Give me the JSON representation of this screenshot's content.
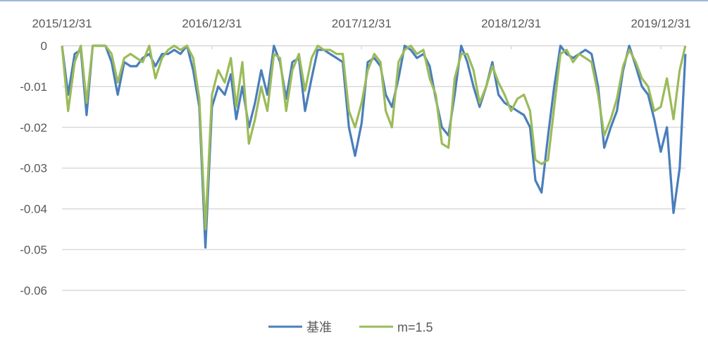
{
  "chart_data": {
    "type": "line",
    "title": "",
    "xlabel": "",
    "ylabel": "",
    "x_tick_labels": [
      "2015/12/31",
      "2016/12/31",
      "2017/12/31",
      "2018/12/31",
      "2019/12/31"
    ],
    "y_tick_labels": [
      "0",
      "-0.01",
      "-0.02",
      "-0.03",
      "-0.04",
      "-0.05",
      "-0.06"
    ],
    "ylim": [
      -0.06,
      0
    ],
    "x_axis_position": "top",
    "grid": true,
    "legend_position": "bottom",
    "x": [
      "2015-12-31",
      "2016-01-15",
      "2016-01-31",
      "2016-02-15",
      "2016-02-29",
      "2016-03-15",
      "2016-03-31",
      "2016-04-15",
      "2016-04-30",
      "2016-05-15",
      "2016-05-31",
      "2016-06-15",
      "2016-06-30",
      "2016-07-15",
      "2016-07-31",
      "2016-08-15",
      "2016-08-31",
      "2016-09-15",
      "2016-09-30",
      "2016-10-15",
      "2016-10-31",
      "2016-11-15",
      "2016-11-30",
      "2016-12-15",
      "2016-12-31",
      "2017-01-15",
      "2017-01-31",
      "2017-02-15",
      "2017-02-28",
      "2017-03-15",
      "2017-03-31",
      "2017-04-15",
      "2017-04-30",
      "2017-05-15",
      "2017-05-31",
      "2017-06-15",
      "2017-06-30",
      "2017-07-15",
      "2017-07-31",
      "2017-08-15",
      "2017-08-31",
      "2017-09-15",
      "2017-09-30",
      "2017-10-15",
      "2017-10-31",
      "2017-11-15",
      "2017-11-30",
      "2017-12-15",
      "2017-12-31",
      "2018-01-15",
      "2018-01-31",
      "2018-02-15",
      "2018-02-28",
      "2018-03-15",
      "2018-03-31",
      "2018-04-15",
      "2018-04-30",
      "2018-05-15",
      "2018-05-31",
      "2018-06-15",
      "2018-06-30",
      "2018-07-15",
      "2018-07-31",
      "2018-08-15",
      "2018-08-31",
      "2018-09-15",
      "2018-09-30",
      "2018-10-15",
      "2018-10-31",
      "2018-11-15",
      "2018-11-30",
      "2018-12-15",
      "2018-12-31",
      "2019-01-15",
      "2019-01-31",
      "2019-02-15",
      "2019-02-28",
      "2019-03-15",
      "2019-03-31",
      "2019-04-15",
      "2019-04-30",
      "2019-05-15",
      "2019-05-31",
      "2019-06-15",
      "2019-06-30",
      "2019-07-15",
      "2019-07-31",
      "2019-08-15",
      "2019-08-31",
      "2019-09-15",
      "2019-09-30",
      "2019-10-15",
      "2019-10-31",
      "2019-11-15",
      "2019-11-30",
      "2019-12-15",
      "2019-12-31",
      "2020-01-15",
      "2020-01-31",
      "2020-02-15",
      "2020-02-29"
    ],
    "series": [
      {
        "name": "基准",
        "color": "#4a7ebb",
        "values": [
          0,
          -0.012,
          -0.002,
          -0.001,
          -0.017,
          0,
          0,
          0,
          -0.004,
          -0.012,
          -0.004,
          -0.005,
          -0.005,
          -0.003,
          -0.002,
          -0.005,
          -0.002,
          -0.002,
          -0.001,
          -0.002,
          0,
          -0.006,
          -0.015,
          -0.0495,
          -0.015,
          -0.01,
          -0.012,
          -0.007,
          -0.018,
          -0.01,
          -0.02,
          -0.014,
          -0.006,
          -0.012,
          0,
          -0.004,
          -0.013,
          -0.004,
          -0.003,
          -0.016,
          -0.008,
          -0.001,
          -0.001,
          -0.002,
          -0.003,
          -0.004,
          -0.02,
          -0.027,
          -0.019,
          -0.004,
          -0.003,
          -0.005,
          -0.012,
          -0.015,
          -0.008,
          0,
          -0.001,
          -0.003,
          -0.002,
          -0.005,
          -0.013,
          -0.02,
          -0.022,
          -0.012,
          0,
          -0.004,
          -0.01,
          -0.015,
          -0.01,
          -0.004,
          -0.012,
          -0.014,
          -0.015,
          -0.016,
          -0.017,
          -0.02,
          -0.033,
          -0.036,
          -0.022,
          -0.01,
          0,
          -0.002,
          -0.003,
          -0.002,
          -0.001,
          -0.002,
          -0.01,
          -0.025,
          -0.02,
          -0.016,
          -0.006,
          0,
          -0.005,
          -0.01,
          -0.012,
          -0.018,
          -0.026,
          -0.02,
          -0.041,
          -0.03,
          -0.002
        ]
      },
      {
        "name": "m=1.5",
        "color": "#9bbb59",
        "values": [
          0,
          -0.016,
          -0.004,
          0,
          -0.014,
          0,
          0,
          0,
          -0.002,
          -0.009,
          -0.003,
          -0.002,
          -0.003,
          -0.004,
          0,
          -0.008,
          -0.003,
          -0.001,
          0,
          -0.001,
          0,
          -0.003,
          -0.013,
          -0.045,
          -0.012,
          -0.006,
          -0.009,
          -0.003,
          -0.015,
          -0.004,
          -0.024,
          -0.018,
          -0.01,
          -0.016,
          -0.002,
          -0.003,
          -0.016,
          -0.006,
          -0.002,
          -0.011,
          -0.003,
          0,
          -0.001,
          -0.001,
          -0.002,
          -0.002,
          -0.016,
          -0.02,
          -0.014,
          -0.006,
          -0.002,
          -0.004,
          -0.016,
          -0.02,
          -0.004,
          -0.001,
          0,
          -0.002,
          -0.001,
          -0.008,
          -0.012,
          -0.024,
          -0.025,
          -0.008,
          -0.002,
          -0.002,
          -0.006,
          -0.014,
          -0.01,
          -0.005,
          -0.009,
          -0.012,
          -0.016,
          -0.013,
          -0.012,
          -0.016,
          -0.028,
          -0.029,
          -0.028,
          -0.015,
          -0.002,
          -0.001,
          -0.004,
          -0.002,
          -0.003,
          -0.004,
          -0.012,
          -0.022,
          -0.018,
          -0.013,
          -0.005,
          -0.001,
          -0.004,
          -0.008,
          -0.01,
          -0.016,
          -0.015,
          -0.008,
          -0.018,
          -0.006,
          0
        ]
      }
    ]
  }
}
